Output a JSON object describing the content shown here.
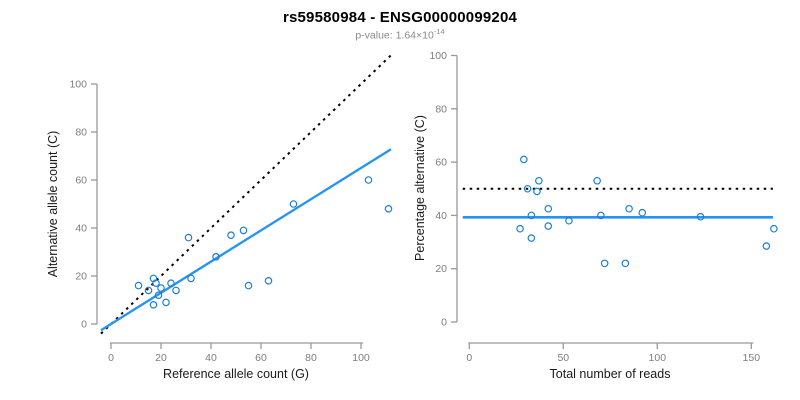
{
  "header": {
    "title": "rs59580984 - ENSG00000099204",
    "pvalue_text": "p-value: 1.64×10",
    "pvalue_exponent": "-14"
  },
  "colors": {
    "point": "#1b7fd4",
    "fit_line": "#2793f2",
    "dotted_line": "#000000",
    "axis": "#999999",
    "tick_label": "#7d7d7d",
    "axis_title": "#1a1a1a"
  },
  "chart_data": [
    {
      "type": "scatter",
      "name": "allele-counts-plot",
      "xlabel": "Reference allele count (G)",
      "ylabel": "Alternative allele count (C)",
      "xlim": [
        0,
        112
      ],
      "ylim": [
        0,
        100
      ],
      "xticks": [
        0,
        20,
        40,
        60,
        80,
        100
      ],
      "yticks": [
        0,
        20,
        40,
        60,
        80,
        100
      ],
      "grid": false,
      "points": [
        [
          11,
          16
        ],
        [
          15,
          14
        ],
        [
          17,
          19
        ],
        [
          18,
          17
        ],
        [
          19,
          12
        ],
        [
          20,
          15
        ],
        [
          17,
          8
        ],
        [
          22,
          9
        ],
        [
          24,
          17
        ],
        [
          26,
          14
        ],
        [
          32,
          19
        ],
        [
          31,
          36
        ],
        [
          42,
          28
        ],
        [
          48,
          37
        ],
        [
          53,
          39
        ],
        [
          55,
          16
        ],
        [
          63,
          18
        ],
        [
          73,
          50
        ],
        [
          103,
          60
        ],
        [
          111,
          48
        ]
      ],
      "lines": [
        {
          "kind": "abline",
          "name": "identity-line",
          "slope": 1,
          "intercept": 0,
          "dashed": true,
          "colorKey": "dotted_line",
          "width": 2
        },
        {
          "kind": "abline",
          "name": "fit-line",
          "slope": 0.65,
          "intercept": 0,
          "dashed": false,
          "colorKey": "fit_line",
          "width": 2.4
        }
      ]
    },
    {
      "type": "scatter",
      "name": "percentage-alternative-plot",
      "xlabel": "Total number of reads",
      "ylabel": "Percentage alternative (C)",
      "xlim": [
        0,
        162
      ],
      "ylim": [
        0,
        100
      ],
      "xticks": [
        0,
        50,
        100,
        150
      ],
      "yticks": [
        0,
        20,
        40,
        60,
        80,
        100
      ],
      "grid": false,
      "points": [
        [
          29,
          61
        ],
        [
          31,
          50
        ],
        [
          37,
          53
        ],
        [
          36,
          49
        ],
        [
          68,
          53
        ],
        [
          42,
          42.5
        ],
        [
          33,
          40
        ],
        [
          53,
          38
        ],
        [
          70,
          40
        ],
        [
          27,
          35
        ],
        [
          42,
          36
        ],
        [
          33,
          31.5
        ],
        [
          85,
          42.5
        ],
        [
          92,
          41
        ],
        [
          123,
          39.5
        ],
        [
          72,
          22
        ],
        [
          83,
          22
        ],
        [
          162,
          35
        ],
        [
          158,
          28.5
        ]
      ],
      "lines": [
        {
          "kind": "hline",
          "name": "null-line",
          "value": 50,
          "dashed": true,
          "colorKey": "dotted_line",
          "width": 2
        },
        {
          "kind": "hline",
          "name": "fit-line",
          "value": 39.3,
          "dashed": false,
          "colorKey": "fit_line",
          "width": 2.6
        }
      ]
    }
  ]
}
